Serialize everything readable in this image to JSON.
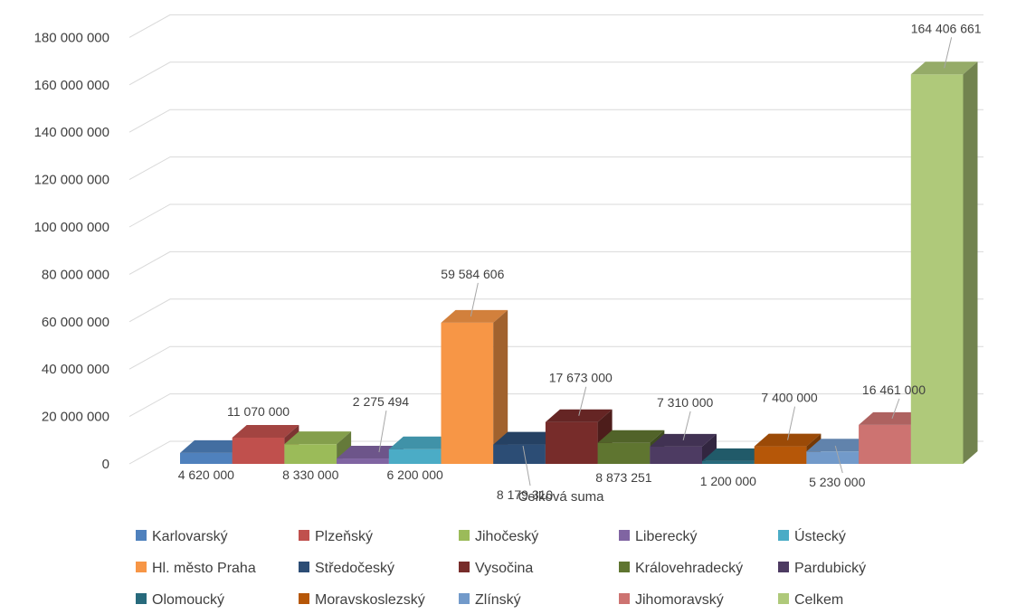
{
  "chart_data": {
    "type": "bar",
    "variant": "3d-clustered-column",
    "xlabel": "Celková suma",
    "ylim": [
      0,
      180000000
    ],
    "yticks": [
      "0",
      "20 000 000",
      "40 000 000",
      "60 000 000",
      "80 000 000",
      "100 000 000",
      "120 000 000",
      "140 000 000",
      "160 000 000",
      "180 000 000"
    ],
    "grid": true,
    "legend_position": "bottom",
    "series": [
      {
        "name": "Karlovarský",
        "value": 4620000,
        "label": "4 620 000",
        "color": "#4F81BD"
      },
      {
        "name": "Plzeňský",
        "value": 11070000,
        "label": "11 070 000",
        "color": "#C0504D"
      },
      {
        "name": "Jihočeský",
        "value": 8330000,
        "label": "8 330 000",
        "color": "#9BBB59"
      },
      {
        "name": "Liberecký",
        "value": 2275494,
        "label": "2 275 494",
        "color": "#8064A2"
      },
      {
        "name": "Ústecký",
        "value": 6200000,
        "label": "6 200 000",
        "color": "#4BACC6"
      },
      {
        "name": "Hl. město Praha",
        "value": 59584606,
        "label": "59 584 606",
        "color": "#F79646"
      },
      {
        "name": "Středočeský",
        "value": 8179310,
        "label": "8 179 310",
        "color": "#2C4D75"
      },
      {
        "name": "Vysočina",
        "value": 17673000,
        "label": "17 673 000",
        "color": "#772C2A"
      },
      {
        "name": "Královehradecký",
        "value": 8873251,
        "label": "8 873 251",
        "color": "#5F7530"
      },
      {
        "name": "Pardubický",
        "value": 7310000,
        "label": "7 310 000",
        "color": "#4D3B62"
      },
      {
        "name": "Olomoucký",
        "value": 1200000,
        "label": "1 200 000",
        "color": "#276A7C"
      },
      {
        "name": "Moravskoslezský",
        "value": 7400000,
        "label": "7 400 000",
        "color": "#B65708"
      },
      {
        "name": "Zlínský",
        "value": 5230000,
        "label": "5 230 000",
        "color": "#729ACA"
      },
      {
        "name": "Jihomoravský",
        "value": 16461000,
        "label": "16 461 000",
        "color": "#CD7371"
      },
      {
        "name": "Celkem",
        "value": 164406661,
        "label": "164 406 661",
        "color": "#AFC97A"
      }
    ]
  }
}
